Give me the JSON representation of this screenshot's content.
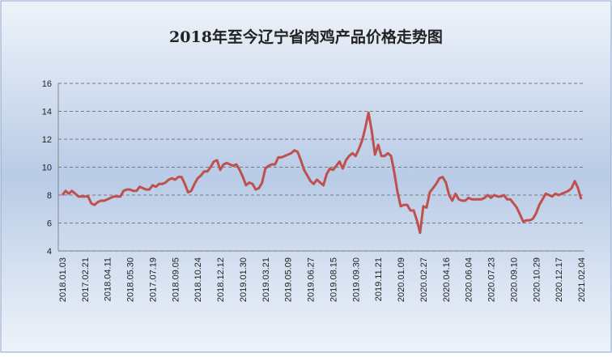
{
  "chart_data": {
    "type": "line",
    "title": "2018年至今辽宁省肉鸡产品价格走势图",
    "categories": [
      "2018.01.03",
      null,
      null,
      null,
      null,
      null,
      null,
      "2017.02.21",
      null,
      null,
      null,
      null,
      null,
      null,
      "2018.04.11",
      null,
      null,
      null,
      null,
      null,
      null,
      "2018.05.30",
      null,
      null,
      null,
      null,
      null,
      null,
      "2017.07.19",
      null,
      null,
      null,
      null,
      null,
      null,
      "2018.09.05",
      null,
      null,
      null,
      null,
      null,
      null,
      "2018.10.24",
      null,
      null,
      null,
      null,
      null,
      null,
      "2018.12.12",
      null,
      null,
      null,
      null,
      null,
      null,
      "2019.01.30",
      null,
      null,
      null,
      null,
      null,
      null,
      "2019.03.21",
      null,
      null,
      null,
      null,
      null,
      null,
      "2019.05.09",
      null,
      null,
      null,
      null,
      null,
      null,
      "2019.06.27",
      null,
      null,
      null,
      null,
      null,
      null,
      "2019.08.15",
      null,
      null,
      null,
      null,
      null,
      null,
      "2019.09.30",
      null,
      null,
      null,
      null,
      null,
      null,
      "2019.11.21",
      null,
      null,
      null,
      null,
      null,
      null,
      "2020.01.09",
      null,
      null,
      null,
      null,
      null,
      null,
      "2020.02.27",
      null,
      null,
      null,
      null,
      null,
      null,
      "2020.04.16",
      null,
      null,
      null,
      null,
      null,
      null,
      "2020.06.04",
      null,
      null,
      null,
      null,
      null,
      null,
      "2020.07.23",
      null,
      null,
      null,
      null,
      null,
      null,
      "2020.09.10",
      null,
      null,
      null,
      null,
      null,
      null,
      "2020.10.29",
      null,
      null,
      null,
      null,
      null,
      null,
      "2020.12.17",
      null,
      null,
      null,
      null,
      null,
      null,
      "2021.02.04"
    ],
    "series": [
      {
        "color": "#c0504d",
        "values": [
          8.0,
          8.3,
          8.1,
          8.3,
          8.1,
          7.9,
          7.9,
          7.9,
          7.9,
          7.4,
          7.3,
          7.5,
          7.6,
          7.6,
          7.7,
          7.8,
          7.9,
          7.9,
          7.9,
          8.3,
          8.4,
          8.4,
          8.3,
          8.3,
          8.6,
          8.5,
          8.4,
          8.4,
          8.7,
          8.6,
          8.8,
          8.8,
          8.9,
          9.1,
          9.2,
          9.1,
          9.3,
          9.3,
          8.8,
          8.2,
          8.3,
          8.8,
          9.2,
          9.4,
          9.7,
          9.7,
          10.0,
          10.4,
          10.5,
          9.8,
          10.2,
          10.3,
          10.2,
          10.1,
          10.2,
          9.8,
          9.3,
          8.7,
          8.9,
          8.8,
          8.4,
          8.5,
          8.9,
          9.9,
          10.1,
          10.2,
          10.2,
          10.7,
          10.7,
          10.8,
          10.9,
          11.0,
          11.2,
          11.1,
          10.5,
          9.8,
          9.4,
          9.0,
          8.8,
          9.1,
          8.9,
          8.7,
          9.5,
          9.9,
          9.8,
          10.1,
          10.4,
          9.9,
          10.5,
          10.8,
          11.0,
          10.8,
          11.3,
          11.9,
          12.8,
          13.9,
          12.6,
          10.9,
          11.6,
          10.8,
          10.8,
          11.0,
          10.8,
          9.6,
          8.2,
          7.2,
          7.3,
          7.3,
          6.9,
          6.9,
          6.2,
          5.3,
          7.2,
          7.1,
          8.2,
          8.5,
          8.8,
          9.2,
          9.3,
          8.9,
          8.0,
          7.6,
          8.1,
          7.7,
          7.6,
          7.6,
          7.8,
          7.7,
          7.7,
          7.7,
          7.7,
          7.8,
          8.0,
          7.8,
          8.0,
          7.9,
          7.9,
          8.0,
          7.7,
          7.7,
          7.4,
          7.1,
          6.6,
          6.1,
          6.2,
          6.2,
          6.3,
          6.7,
          7.3,
          7.7,
          8.1,
          8.0,
          7.9,
          8.1,
          8.0,
          8.1,
          8.2,
          8.3,
          8.5,
          9.0,
          8.5,
          7.7
        ]
      }
    ],
    "ylim": [
      4,
      16
    ],
    "yticks": [
      4,
      6,
      8,
      10,
      12,
      14,
      16
    ],
    "grid": true
  }
}
